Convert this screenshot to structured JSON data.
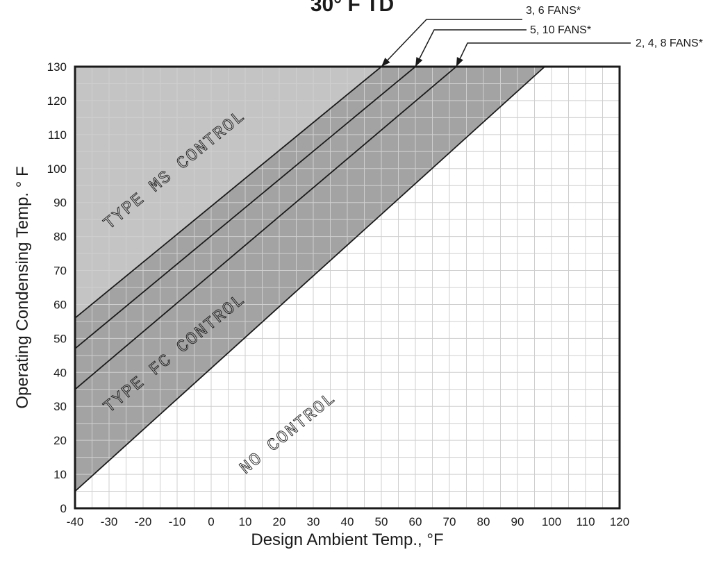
{
  "chart_data": {
    "type": "line",
    "title": "30° F TD",
    "xlabel": "Design Ambient Temp., °F",
    "ylabel": "Operating Condensing Temp. ° F",
    "xlim": [
      -40,
      120
    ],
    "ylim": [
      0,
      130
    ],
    "x_ticks": [
      -40,
      -30,
      -20,
      -10,
      0,
      10,
      20,
      30,
      40,
      50,
      60,
      70,
      80,
      90,
      100,
      110,
      120
    ],
    "y_ticks": [
      0,
      10,
      20,
      30,
      40,
      50,
      60,
      70,
      80,
      90,
      100,
      110,
      120,
      130
    ],
    "grid": true,
    "grid_step": {
      "x": 5,
      "y": 5
    },
    "series": [
      {
        "name": "3, 6 FANS*",
        "x": [
          -40,
          50
        ],
        "y": [
          56,
          130
        ]
      },
      {
        "name": "5, 10 FANS*",
        "x": [
          -40,
          60
        ],
        "y": [
          47,
          130
        ]
      },
      {
        "name": "2, 4, 8 FANS*",
        "x": [
          -40,
          72
        ],
        "y": [
          35,
          130
        ]
      },
      {
        "x": [
          -40,
          98
        ],
        "y": [
          5,
          130
        ]
      }
    ],
    "regions": [
      {
        "label": "TYPE MS CONTROL",
        "fill": "#c4c4c4"
      },
      {
        "label": "TYPE FC CONTROL",
        "fill": "#a3a3a3"
      },
      {
        "label": "NO CONTROL",
        "fill": "#ffffff"
      }
    ],
    "colors": {
      "ms_region": "#c4c4c4",
      "fc_region": "#a3a3a3",
      "grid": "#cfcfcf",
      "line": "#1a1a1a"
    }
  }
}
